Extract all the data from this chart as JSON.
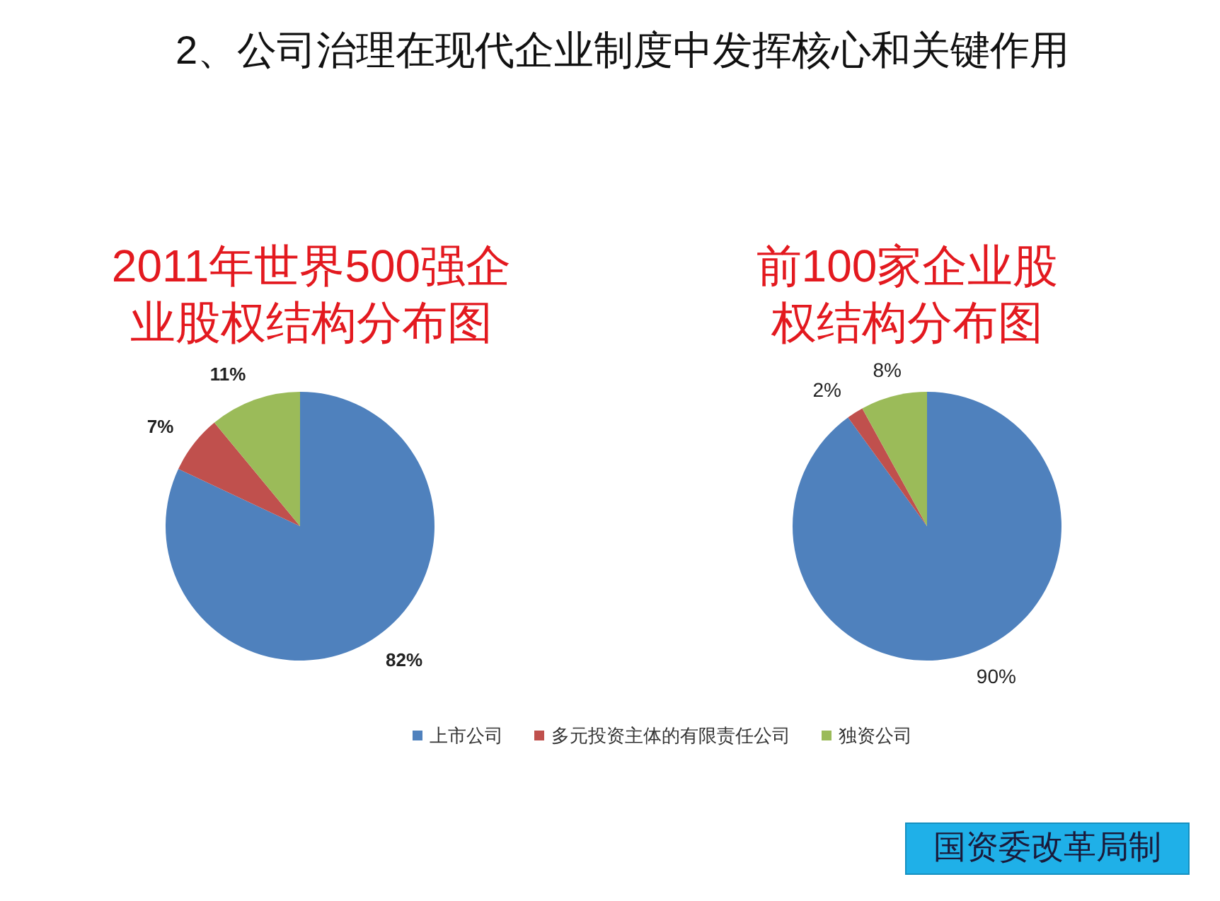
{
  "chart_data": [
    {
      "type": "pie",
      "title": "2011年世界500强企业股权结构分布图",
      "categories": [
        "上市公司",
        "多元投资主体的有限责任公司",
        "独资公司"
      ],
      "values": [
        82,
        7,
        11
      ],
      "colors": [
        "#4f81bd",
        "#c0504d",
        "#9bbb59"
      ],
      "value_labels": [
        "82%",
        "7%",
        "11%"
      ],
      "legend": "bottom",
      "annotations": [
        "2、公司治理在现代企业制度中发挥核心和关键作用"
      ]
    },
    {
      "type": "pie",
      "title": "前100家企业股权结构分布图",
      "values": [
        90,
        2,
        8
      ],
      "colors": [
        "#4f81bd",
        "#c0504d",
        "#9bbb59"
      ],
      "value_labels": [
        "90%",
        "2%",
        "8%"
      ],
      "annotations": [
        "国资委改革局制"
      ]
    }
  ]
}
